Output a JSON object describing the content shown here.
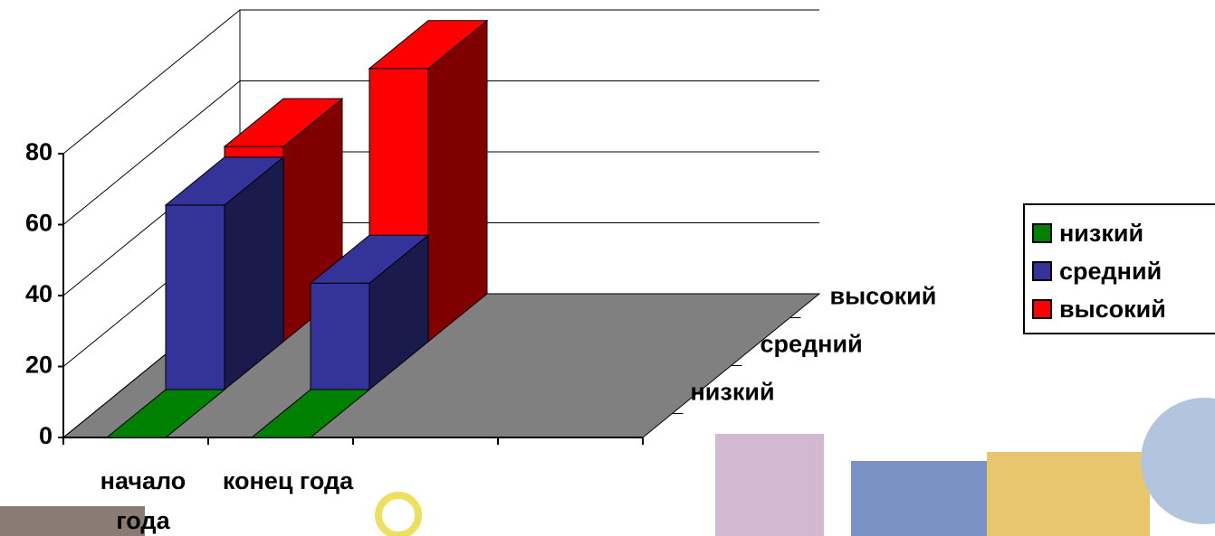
{
  "chart_data": {
    "type": "bar3d",
    "categories": [
      "начало года",
      "конец года",
      null,
      null
    ],
    "series": [
      {
        "name": "низкий",
        "color": "#008000",
        "values": [
          0,
          0,
          null,
          null
        ]
      },
      {
        "name": "средний",
        "color": "#333399",
        "values": [
          52,
          30,
          null,
          null
        ]
      },
      {
        "name": "высокий",
        "color": "#ff0000",
        "values": [
          55,
          77,
          null,
          null
        ]
      }
    ],
    "ylim": [
      0,
      80
    ],
    "yticks": [
      0,
      20,
      40,
      60,
      80
    ],
    "grid": true,
    "legend": "right",
    "floor_color": "#808080"
  }
}
